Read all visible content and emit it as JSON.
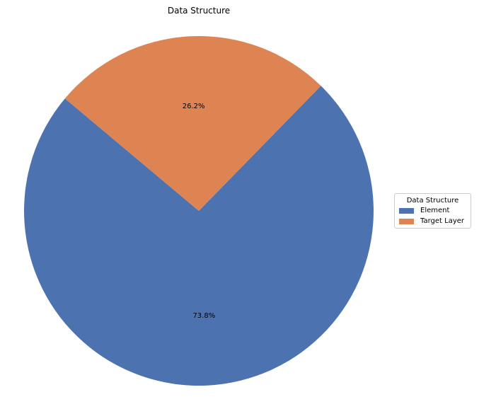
{
  "chart_data": {
    "type": "pie",
    "title": "Data Structure",
    "categories": [
      "Element",
      "Target Layer"
    ],
    "values": [
      73.8,
      26.2
    ],
    "labels": [
      "73.8%",
      "26.2%"
    ],
    "colors": [
      "#4c72b0",
      "#dd8452"
    ],
    "start_angle_deg": 140,
    "legend": {
      "title": "Data Structure",
      "placement": "center-right",
      "entries": [
        "Element",
        "Target Layer"
      ]
    }
  }
}
